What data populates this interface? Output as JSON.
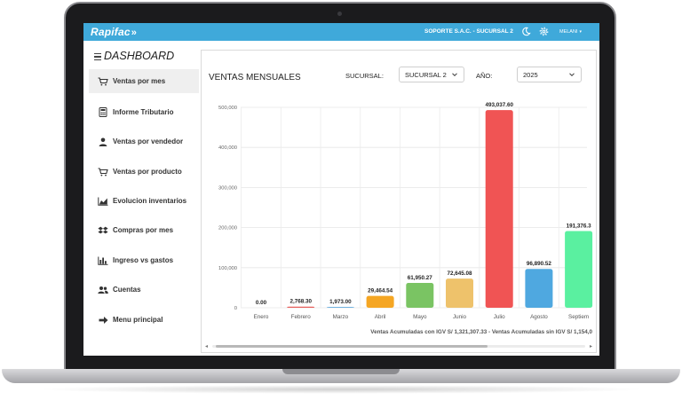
{
  "app": {
    "logo": "Rapifac",
    "company": "SOPORTE S.A.C. - SUCURSAL 2",
    "user": "MELANI"
  },
  "sidebar": {
    "title": "DASHBOARD",
    "items": [
      {
        "label": "Ventas por mes",
        "icon": "cart-icon",
        "active": true
      },
      {
        "label": "Informe Tributario",
        "icon": "calculator-icon"
      },
      {
        "label": "Ventas por vendedor",
        "icon": "person-icon"
      },
      {
        "label": "Ventas por producto",
        "icon": "cart-icon"
      },
      {
        "label": "Evolucion inventarios",
        "icon": "area-chart-icon"
      },
      {
        "label": "Compras por mes",
        "icon": "dropbox-icon"
      },
      {
        "label": "Ingreso vs gastos",
        "icon": "bar-chart-icon"
      },
      {
        "label": "Cuentas",
        "icon": "people-icon"
      },
      {
        "label": "Menu principal",
        "icon": "arrow-right-icon"
      }
    ]
  },
  "filters": {
    "title": "VENTAS MENSUALES",
    "sucursal_label": "SUCURSAL:",
    "sucursal_value": "SUCURSAL 2",
    "anio_label": "AÑO:",
    "anio_value": "2025"
  },
  "chart_data": {
    "type": "bar",
    "title": "VENTAS MENSUALES",
    "categories": [
      "Enero",
      "Febrero",
      "Marzo",
      "Abril",
      "Mayo",
      "Junio",
      "Julio",
      "Agosto",
      "Septiem"
    ],
    "values": [
      0,
      2768.3,
      1973.0,
      29464.54,
      61950.27,
      72645.08,
      493037.6,
      96890.52,
      191376.3
    ],
    "value_labels": [
      "0.00",
      "2,768.30",
      "1,973.00",
      "29,464.54",
      "61,950.27",
      "72,645.08",
      "493,037.60",
      "96,890.52",
      "191,376.3"
    ],
    "colors": [
      "#f0c068",
      "#e85f5c",
      "#5ca8dd",
      "#f5a623",
      "#7ac463",
      "#eec26b",
      "#f05454",
      "#4fa8e0",
      "#5af0a0"
    ],
    "ylim": [
      0,
      500000
    ],
    "yticks": [
      0,
      100000,
      200000,
      300000,
      400000,
      500000
    ],
    "ytick_labels": [
      "0",
      "100,000",
      "200,000",
      "300,000",
      "400,000",
      "500,000"
    ],
    "grid": true,
    "legend": "none"
  },
  "footer": {
    "text": "Ventas Acumuladas con IGV S/ 1,321,307.33 - Ventas Acumuladas sin IGV S/ 1,154,0"
  },
  "colors": {
    "topbar": "#3fa9da",
    "frame": "#1b1b1d"
  }
}
